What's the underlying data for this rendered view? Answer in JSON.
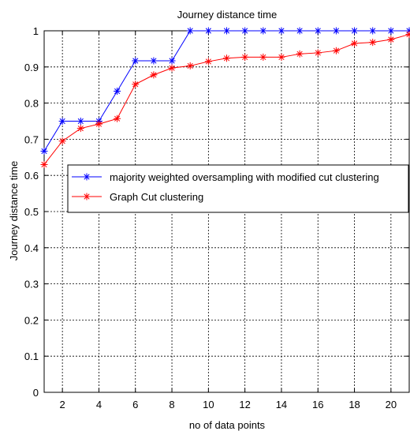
{
  "chart_data": {
    "type": "line",
    "title": "Journey distance time",
    "xlabel": "no of data points",
    "ylabel": "Journey distance time",
    "xlim": [
      1,
      21
    ],
    "ylim": [
      0,
      1
    ],
    "xticks": [
      2,
      4,
      6,
      8,
      10,
      12,
      14,
      16,
      18,
      20
    ],
    "yticks": [
      0,
      0.1,
      0.2,
      0.3,
      0.4,
      0.5,
      0.6,
      0.7,
      0.8,
      0.9,
      1
    ],
    "grid": true,
    "legend_position": "center-right",
    "x": [
      1,
      2,
      3,
      4,
      5,
      6,
      7,
      8,
      9,
      10,
      11,
      12,
      13,
      14,
      15,
      16,
      17,
      18,
      19,
      20,
      21
    ],
    "series": [
      {
        "name": "majority weighted oversampling with modified cut clustering",
        "color": "#0000ff",
        "marker": "*",
        "values": [
          0.667,
          0.75,
          0.75,
          0.75,
          0.833,
          0.917,
          0.917,
          0.917,
          1.0,
          1.0,
          1.0,
          1.0,
          1.0,
          1.0,
          1.0,
          1.0,
          1.0,
          1.0,
          1.0,
          1.0,
          1.0
        ]
      },
      {
        "name": "Graph Cut clustering",
        "color": "#ff0000",
        "marker": "*",
        "values": [
          0.63,
          0.695,
          0.73,
          0.742,
          0.757,
          0.852,
          0.878,
          0.897,
          0.903,
          0.915,
          0.924,
          0.927,
          0.927,
          0.927,
          0.936,
          0.939,
          0.945,
          0.965,
          0.968,
          0.976,
          0.99
        ]
      }
    ]
  }
}
